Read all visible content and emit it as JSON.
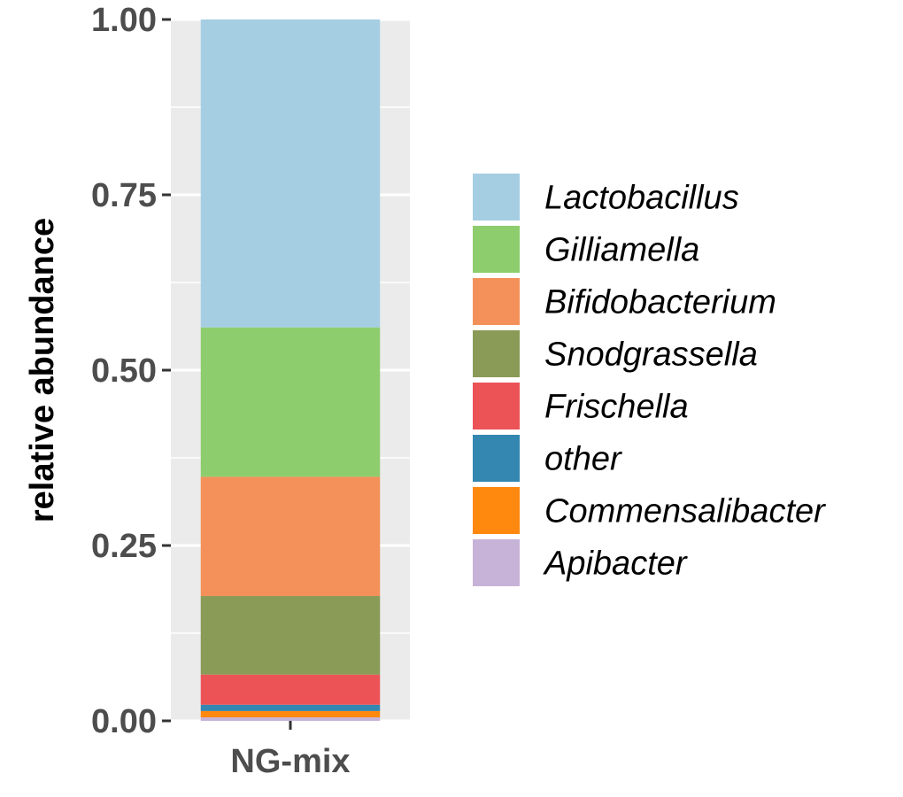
{
  "chart_data": {
    "type": "bar",
    "stacked": true,
    "categories": [
      "NG-mix"
    ],
    "ylabel": "relative abundance",
    "xlabel": "",
    "ylim": [
      0,
      1
    ],
    "yticks": [
      {
        "value": 0.0,
        "label": "0.00"
      },
      {
        "value": 0.25,
        "label": "0.25"
      },
      {
        "value": 0.5,
        "label": "0.50"
      },
      {
        "value": 0.75,
        "label": "0.75"
      },
      {
        "value": 1.0,
        "label": "1.00"
      }
    ],
    "grid": true,
    "legend_position": "right",
    "series": [
      {
        "name": "Lactobacillus",
        "color": "#a6cee3",
        "values": [
          0.439
        ]
      },
      {
        "name": "Gilliamella",
        "color": "#8ecd6e",
        "values": [
          0.213
        ]
      },
      {
        "name": "Bifidobacterium",
        "color": "#f4915a",
        "values": [
          0.17
        ]
      },
      {
        "name": "Snodgrassella",
        "color": "#8a9a57",
        "values": [
          0.112
        ]
      },
      {
        "name": "Frischella",
        "color": "#ec5356",
        "values": [
          0.043
        ]
      },
      {
        "name": "other",
        "color": "#3387b0",
        "values": [
          0.009
        ]
      },
      {
        "name": "Commensalibacter",
        "color": "#ff880f",
        "values": [
          0.009
        ]
      },
      {
        "name": "Apibacter",
        "color": "#c8b3d8",
        "values": [
          0.005
        ]
      }
    ]
  }
}
